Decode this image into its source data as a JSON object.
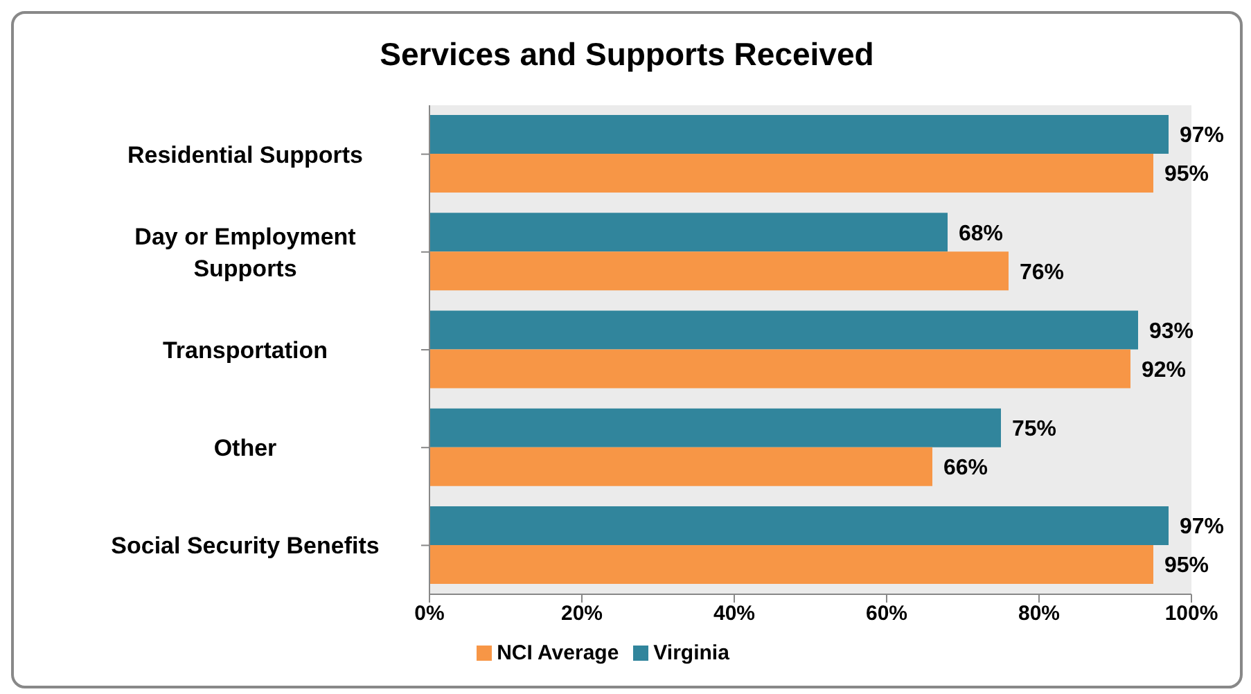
{
  "chart_data": {
    "type": "bar",
    "orientation": "horizontal",
    "title": "Services and Supports Received",
    "categories": [
      "Residential Supports",
      "Day or Employment Supports",
      "Transportation",
      "Other",
      "Social Security Benefits"
    ],
    "series": [
      {
        "name": "Virginia",
        "color": "#31859c",
        "values": [
          97,
          68,
          93,
          75,
          97
        ],
        "value_labels": [
          "97%",
          "68%",
          "93%",
          "75%",
          "97%"
        ]
      },
      {
        "name": "NCI Average",
        "color": "#f79646",
        "values": [
          95,
          76,
          92,
          66,
          95
        ],
        "value_labels": [
          "95%",
          "76%",
          "92%",
          "66%",
          "95%"
        ]
      }
    ],
    "xlim": [
      0,
      100
    ],
    "xticks": [
      {
        "value": 0,
        "label": "0%"
      },
      {
        "value": 20,
        "label": "20%"
      },
      {
        "value": 40,
        "label": "40%"
      },
      {
        "value": 60,
        "label": "60%"
      },
      {
        "value": 80,
        "label": "80%"
      },
      {
        "value": 100,
        "label": "100%"
      }
    ],
    "grid": false,
    "legend": "bottom"
  }
}
